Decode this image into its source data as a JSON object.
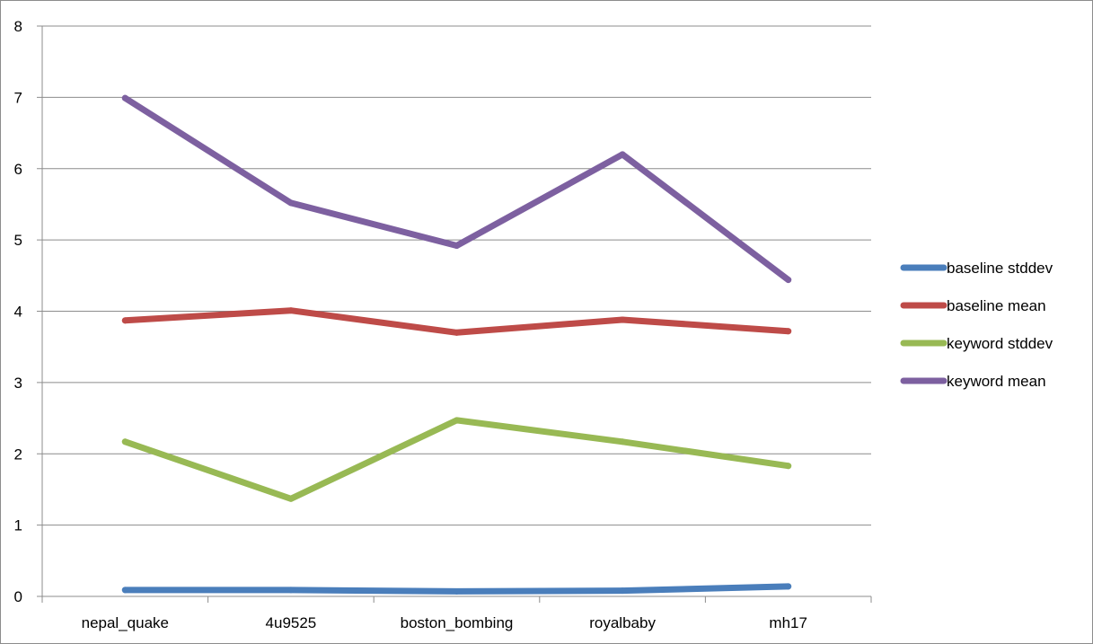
{
  "chart_data": {
    "type": "line",
    "categories": [
      "nepal_quake",
      "4u9525",
      "boston_bombing",
      "royalbaby",
      "mh17"
    ],
    "series": [
      {
        "name": "baseline stddev",
        "color": "#4a7ebb",
        "values": [
          0.09,
          0.09,
          0.07,
          0.08,
          0.14
        ]
      },
      {
        "name": "baseline mean",
        "color": "#be4b48",
        "values": [
          3.87,
          4.01,
          3.7,
          3.88,
          3.72
        ]
      },
      {
        "name": "keyword stddev",
        "color": "#98b954",
        "values": [
          2.17,
          1.37,
          2.47,
          2.17,
          1.83
        ]
      },
      {
        "name": "keyword mean",
        "color": "#7d60a0",
        "values": [
          6.99,
          5.52,
          4.92,
          6.2,
          4.44
        ]
      }
    ],
    "ylim": [
      0,
      8
    ],
    "yticks": [
      "0",
      "1",
      "2",
      "3",
      "4",
      "5",
      "6",
      "7",
      "8"
    ],
    "title": "",
    "xlabel": "",
    "ylabel": "",
    "grid": "horizontal",
    "legend_position": "right"
  }
}
